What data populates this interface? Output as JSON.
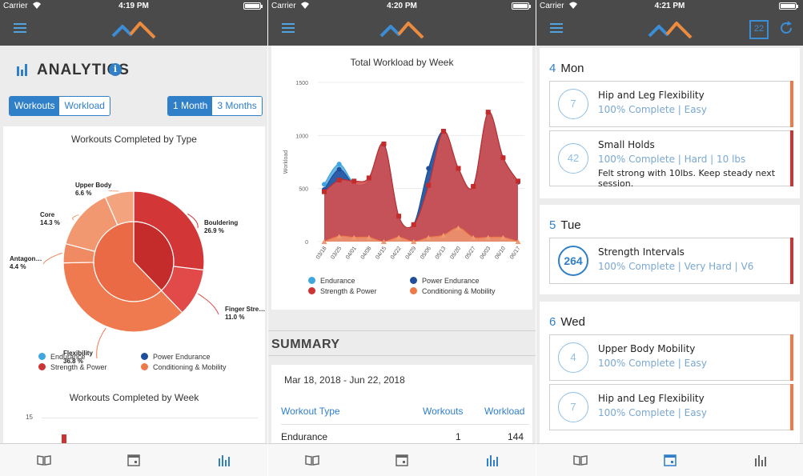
{
  "screens": [
    {
      "status": {
        "carrier": "Carrier",
        "time": "4:19 PM"
      },
      "analytics": {
        "title": "ANALYTICS",
        "seg_left": [
          "Workouts",
          "Workload"
        ],
        "seg_right": [
          "1 Month",
          "3 Months"
        ]
      },
      "pie_title": "Workouts Completed by Type",
      "week_title": "Workouts Completed by Week",
      "week_tick": "15",
      "legend": [
        "Endurance",
        "Power Endurance",
        "Strength & Power",
        "Conditioning & Mobility"
      ]
    },
    {
      "status": {
        "carrier": "Carrier",
        "time": "4:20 PM"
      },
      "summary": {
        "title": "SUMMARY",
        "date_range": "Mar 18, 2018 - Jun 22, 2018",
        "headers": [
          "Workout Type",
          "Workouts",
          "Workload"
        ],
        "rows": [
          {
            "type": "Endurance",
            "workouts": "1",
            "workload": "144"
          }
        ]
      },
      "legend": [
        "Endurance",
        "Power Endurance",
        "Strength & Power",
        "Conditioning & Mobility"
      ]
    },
    {
      "status": {
        "carrier": "Carrier",
        "time": "4:21 PM"
      },
      "calendar_btn": "22",
      "days": [
        {
          "num": "4",
          "name": "Mon",
          "workouts": [
            {
              "value": "7",
              "name": "Hip and Leg Flexibility",
              "meta": "100% Complete  |  Easy",
              "note": ""
            },
            {
              "value": "42",
              "name": "Small Holds",
              "meta": "100% Complete  |  Hard  |  10 lbs",
              "note": "Felt strong with 10lbs. Keep steady next session."
            }
          ]
        },
        {
          "num": "5",
          "name": "Tue",
          "workouts": [
            {
              "value": "264",
              "name": "Strength Intervals",
              "meta": "100% Complete  |  Very Hard  |  V6",
              "note": ""
            }
          ]
        },
        {
          "num": "6",
          "name": "Wed",
          "workouts": [
            {
              "value": "4",
              "name": "Upper Body Mobility",
              "meta": "100% Complete  |  Easy",
              "note": ""
            },
            {
              "value": "7",
              "name": "Hip and Leg Flexibility",
              "meta": "100% Complete  |  Easy",
              "note": ""
            }
          ]
        }
      ]
    }
  ],
  "colors": {
    "endurance": "#3fa6e0",
    "power_endurance": "#1f4f9a",
    "strength_power": "#cc3333",
    "conditioning": "#ee7a4a",
    "accent": "#2f7fc9",
    "navbar": "#4a4a4a"
  },
  "chart_data": [
    {
      "type": "pie",
      "title": "Workouts Completed by Type",
      "inner": [
        {
          "label": "Strength & Power",
          "value": 37.8
        },
        {
          "label": "Conditioning & Mobility",
          "value": 62.2
        }
      ],
      "outer": [
        {
          "label": "Bouldering",
          "pct_label": "26.9 %",
          "value": 26.9
        },
        {
          "label": "Finger Stre…",
          "pct_label": "11.0 %",
          "value": 11.0
        },
        {
          "label": "Flexibility",
          "pct_label": "36.8 %",
          "value": 36.8
        },
        {
          "label": "Antagon…",
          "pct_label": "4.4 %",
          "value": 4.4
        },
        {
          "label": "Core",
          "pct_label": "14.3 %",
          "value": 14.3
        },
        {
          "label": "Upper Body",
          "pct_label": "6.6 %",
          "value": 6.6
        }
      ]
    },
    {
      "type": "area",
      "title": "Total Workload by Week",
      "ylabel": "Workload",
      "ylim": [
        0,
        1500
      ],
      "yticks": [
        "0",
        "500",
        "1000",
        "1500"
      ],
      "categories": [
        "03/18",
        "03/25",
        "04/01",
        "04/08",
        "04/15",
        "04/22",
        "04/29",
        "05/06",
        "05/13",
        "05/20",
        "05/27",
        "06/03",
        "06/10",
        "06/17"
      ],
      "series": [
        {
          "name": "Endurance",
          "values": [
            540,
            730,
            550,
            580,
            920,
            230,
            160,
            690,
            1040,
            680,
            520,
            1210,
            790,
            560
          ]
        },
        {
          "name": "Power Endurance",
          "values": [
            490,
            680,
            540,
            580,
            920,
            230,
            160,
            690,
            1040,
            680,
            520,
            1210,
            790,
            560
          ]
        },
        {
          "name": "Strength & Power",
          "values": [
            470,
            580,
            570,
            600,
            920,
            240,
            160,
            530,
            1040,
            690,
            520,
            1220,
            790,
            570
          ]
        },
        {
          "name": "Conditioning & Mobility",
          "values": [
            0,
            50,
            40,
            40,
            0,
            40,
            0,
            40,
            60,
            130,
            40,
            40,
            40,
            0
          ]
        }
      ]
    },
    {
      "type": "bar",
      "title": "Workouts Completed by Week",
      "yticks": [
        "15"
      ]
    }
  ]
}
